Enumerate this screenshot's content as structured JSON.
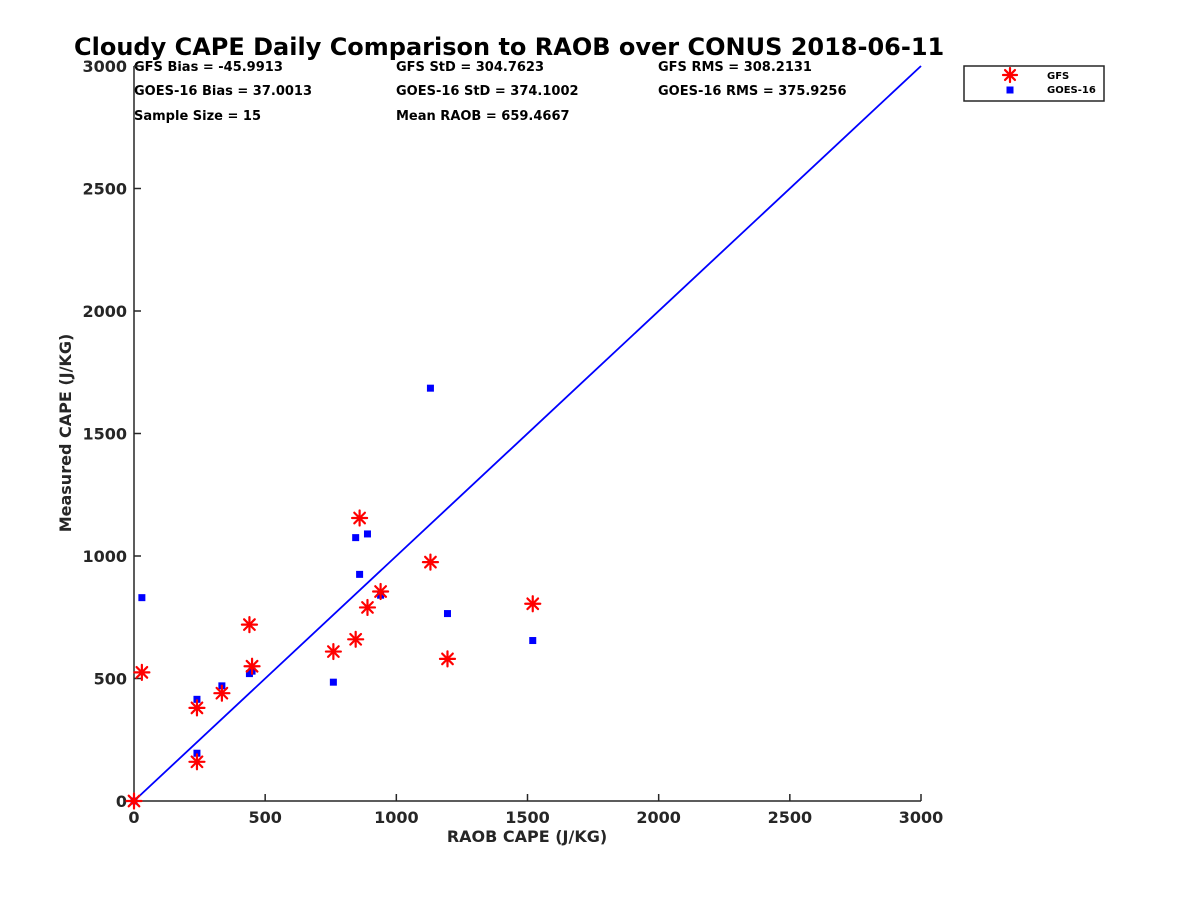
{
  "chart_data": {
    "type": "scatter",
    "title": "Cloudy CAPE Daily Comparison to RAOB over CONUS 2018-06-11",
    "xlabel": "RAOB CAPE (J/KG)",
    "ylabel": "Measured CAPE (J/KG)",
    "xlim": [
      0,
      3000
    ],
    "ylim": [
      0,
      3000
    ],
    "xticks": [
      0,
      500,
      1000,
      1500,
      2000,
      2500,
      3000
    ],
    "yticks": [
      0,
      500,
      1000,
      1500,
      2000,
      2500,
      3000
    ],
    "xtick_labels": [
      "0",
      "500",
      "1000",
      "1500",
      "2000",
      "2500",
      "3000"
    ],
    "ytick_labels": [
      "0",
      "500",
      "1000",
      "1500",
      "2000",
      "2500",
      "3000"
    ],
    "grid": false,
    "legend_position": "top-right, outside plot",
    "reference_line": {
      "x": [
        0,
        3000
      ],
      "y": [
        0,
        3000
      ],
      "color": "#0000ff"
    },
    "stats": [
      "GFS Bias = -45.9913",
      "GFS StD = 304.7623",
      "GFS RMS = 308.2131",
      "GOES-16 Bias = 37.0013",
      "GOES-16 StD = 374.1002",
      "GOES-16 RMS = 375.9256",
      "Sample Size = 15",
      "Mean RAOB = 659.4667"
    ],
    "series": [
      {
        "name": "GFS",
        "marker": "star",
        "color": "#ff0000",
        "x": [
          0,
          30,
          240,
          240,
          335,
          440,
          450,
          760,
          845,
          860,
          890,
          940,
          1130,
          1195,
          1520
        ],
        "y": [
          0,
          525,
          160,
          380,
          440,
          720,
          550,
          610,
          660,
          1155,
          790,
          855,
          975,
          580,
          805
        ]
      },
      {
        "name": "GOES-16",
        "marker": "square",
        "color": "#0000ff",
        "x": [
          0,
          30,
          240,
          240,
          335,
          440,
          450,
          760,
          845,
          860,
          890,
          940,
          1130,
          1195,
          1520
        ],
        "y": [
          0,
          830,
          195,
          415,
          470,
          520,
          530,
          485,
          1075,
          925,
          1090,
          840,
          1685,
          765,
          655
        ]
      }
    ]
  }
}
